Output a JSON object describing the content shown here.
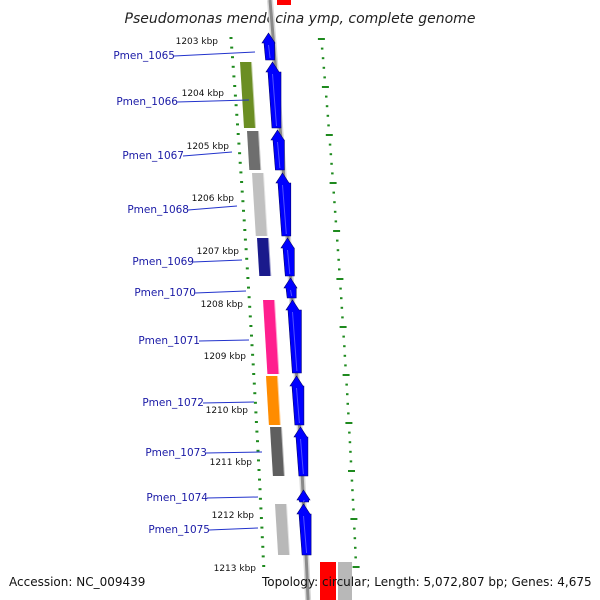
{
  "title": "Pseudomonas mendocina ymp, complete genome",
  "accession": "Accession: NC_009439",
  "topology": "Topology: circular; Length: 5,072,807 bp; Genes: 4,675",
  "colors": {
    "gene_arrow": "#0000ff",
    "backbone": "#8a8a8a",
    "tick_mark": "#1e8a1e",
    "label_text": "#1a1aa6",
    "marker_red": "#ff0000"
  },
  "ticks": [
    {
      "label": "1203 kbp"
    },
    {
      "label": "1204 kbp"
    },
    {
      "label": "1205 kbp"
    },
    {
      "label": "1206 kbp"
    },
    {
      "label": "1207 kbp"
    },
    {
      "label": "1208 kbp"
    },
    {
      "label": "1209 kbp"
    },
    {
      "label": "1210 kbp"
    },
    {
      "label": "1211 kbp"
    },
    {
      "label": "1212 kbp"
    },
    {
      "label": "1213 kbp"
    }
  ],
  "genes": [
    {
      "id": "Pmen_1065",
      "color": "#0000ff",
      "category_color": ""
    },
    {
      "id": "Pmen_1066",
      "color": "#0000ff",
      "category_color": "#6b8e23"
    },
    {
      "id": "Pmen_1067",
      "color": "#0000ff",
      "category_color": "#6e6e6e"
    },
    {
      "id": "Pmen_1068",
      "color": "#0000ff",
      "category_color": "#c0c0c0"
    },
    {
      "id": "Pmen_1069",
      "color": "#0000ff",
      "category_color": "#1a1a8c"
    },
    {
      "id": "Pmen_1070",
      "color": "#0000ff",
      "category_color": ""
    },
    {
      "id": "Pmen_1071",
      "color": "#0000ff",
      "category_color": "#ff1f8e"
    },
    {
      "id": "Pmen_1072",
      "color": "#0000ff",
      "category_color": "#ff8c00"
    },
    {
      "id": "Pmen_1073",
      "color": "#0000ff",
      "category_color": "#5f5f5f"
    },
    {
      "id": "Pmen_1074",
      "color": "#0000ff",
      "category_color": ""
    },
    {
      "id": "Pmen_1075",
      "color": "#0000ff",
      "category_color": "#b8b8b8"
    }
  ]
}
